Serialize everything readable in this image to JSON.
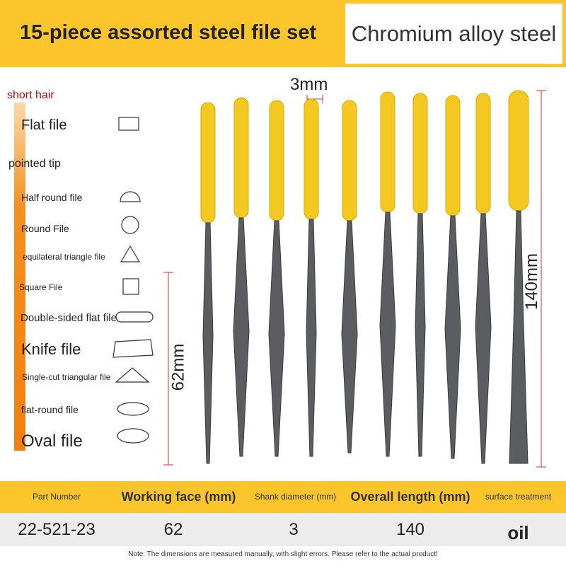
{
  "header": {
    "title": "15-piece assorted steel file set",
    "badge": "Chromium alloy steel"
  },
  "sections": [
    {
      "heading": "short hair",
      "items": [
        "Flat file"
      ]
    },
    {
      "heading": "pointed tip",
      "items": [
        "Half round file",
        "Round File",
        "equilateral triangle file",
        "Square File",
        "Double-sided flat file",
        "Knife file",
        "Single-cut triangular file",
        "flat-round file",
        "Oval file"
      ]
    }
  ],
  "dimensions": {
    "top": "3mm",
    "right": "140mm",
    "left": "62mm"
  },
  "table": {
    "headers": [
      "Part Number",
      "Working face (mm)",
      "Shank diameter (mm)",
      "Overall length (mm)",
      "surface treatment"
    ],
    "rows": [
      [
        "22-521-23",
        62,
        3,
        140,
        "oil"
      ]
    ]
  },
  "note": "Note: The dimensions are measured manually, with slight errors. Please refer to the actual product!"
}
